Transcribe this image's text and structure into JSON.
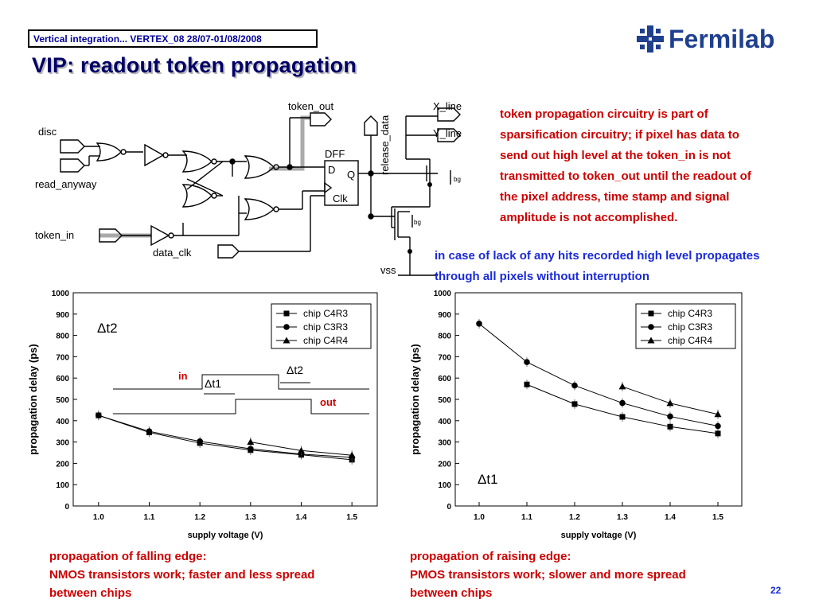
{
  "header": {
    "conference": "Vertical integration... VERTEX_08 28/07-01/08/2008"
  },
  "title": "VIP: readout token propagation",
  "logo": {
    "text": "Fermilab"
  },
  "schematic": {
    "labels": {
      "disc": "disc",
      "read_anyway": "read_anyway",
      "token_in": "token_in",
      "data_clk": "data_clk",
      "token_out": "token_out",
      "release_data": "release_data",
      "x_line": "X_line",
      "y_line": "Y_line",
      "dff": "DFF",
      "d": "D",
      "q": "Q",
      "clk": "Clk",
      "vss": "vss",
      "bg": "bg"
    }
  },
  "notes": {
    "token_description": "token propagation circuitry is part of sparsification circuitry; if pixel has data to send out high level at the token_in is not transmitted to token_out until the readout of the pixel address, time stamp and signal amplitude is not accomplished.",
    "no_hits": "in case of lack of any hits recorded high level propagates through all pixels without interruption"
  },
  "captions": {
    "left": [
      "propagation of falling edge:",
      "NMOS transistors work; faster and less spread",
      "between chips"
    ],
    "right": [
      "propagation of raising edge:",
      "PMOS transistors work; slower and more spread",
      "between chips"
    ]
  },
  "page_number": "22",
  "chart_data": [
    {
      "type": "line",
      "title": "",
      "xlabel": "supply voltage (V)",
      "ylabel": "propagation delay (ps)",
      "xlim": [
        0.95,
        1.55
      ],
      "ylim": [
        0,
        1000
      ],
      "x_ticks": [
        1.0,
        1.1,
        1.2,
        1.3,
        1.4,
        1.5
      ],
      "x_tick_labels": [
        "1.0",
        "1.1",
        "1.2",
        "1.3",
        "1.4",
        "1.5"
      ],
      "y_ticks": [
        0,
        100,
        200,
        300,
        400,
        500,
        600,
        700,
        800,
        900,
        1000
      ],
      "legend_position": "top-right",
      "annotation": "Δt2",
      "inset": {
        "in": "in",
        "out": "out",
        "t1": "Δt1",
        "t2": "Δt2"
      },
      "series": [
        {
          "name": "chip C4R3",
          "marker": "square",
          "x": [
            1.0,
            1.1,
            1.2,
            1.3,
            1.4,
            1.5
          ],
          "values": [
            425,
            345,
            295,
            262,
            240,
            217
          ]
        },
        {
          "name": "chip C3R3",
          "marker": "circle",
          "x": [
            1.0,
            1.1,
            1.2,
            1.3,
            1.4,
            1.5
          ],
          "values": [
            425,
            350,
            303,
            268,
            243,
            228
          ]
        },
        {
          "name": "chip C4R4",
          "marker": "triangle",
          "x": [
            1.3,
            1.4,
            1.5
          ],
          "values": [
            300,
            260,
            238
          ]
        }
      ]
    },
    {
      "type": "line",
      "title": "",
      "xlabel": "supply voltage (V)",
      "ylabel": "propagation delay (ps)",
      "xlim": [
        0.95,
        1.55
      ],
      "ylim": [
        0,
        1000
      ],
      "x_ticks": [
        1.0,
        1.1,
        1.2,
        1.3,
        1.4,
        1.5
      ],
      "x_tick_labels": [
        "1.0",
        "1.1",
        "1.2",
        "1.3",
        "1.4",
        "1.5"
      ],
      "y_ticks": [
        0,
        100,
        200,
        300,
        400,
        500,
        600,
        700,
        800,
        900,
        1000
      ],
      "legend_position": "top-right",
      "annotation": "Δt1",
      "series": [
        {
          "name": "chip C4R3",
          "marker": "square",
          "x": [
            1.1,
            1.2,
            1.3,
            1.4,
            1.5
          ],
          "values": [
            570,
            478,
            418,
            372,
            340
          ]
        },
        {
          "name": "chip C3R3",
          "marker": "circle",
          "x": [
            1.0,
            1.1,
            1.2,
            1.3,
            1.4,
            1.5
          ],
          "values": [
            855,
            675,
            565,
            483,
            420,
            375
          ]
        },
        {
          "name": "chip C4R4",
          "marker": "triangle",
          "x": [
            1.3,
            1.4,
            1.5
          ],
          "values": [
            560,
            482,
            430
          ]
        }
      ]
    }
  ]
}
